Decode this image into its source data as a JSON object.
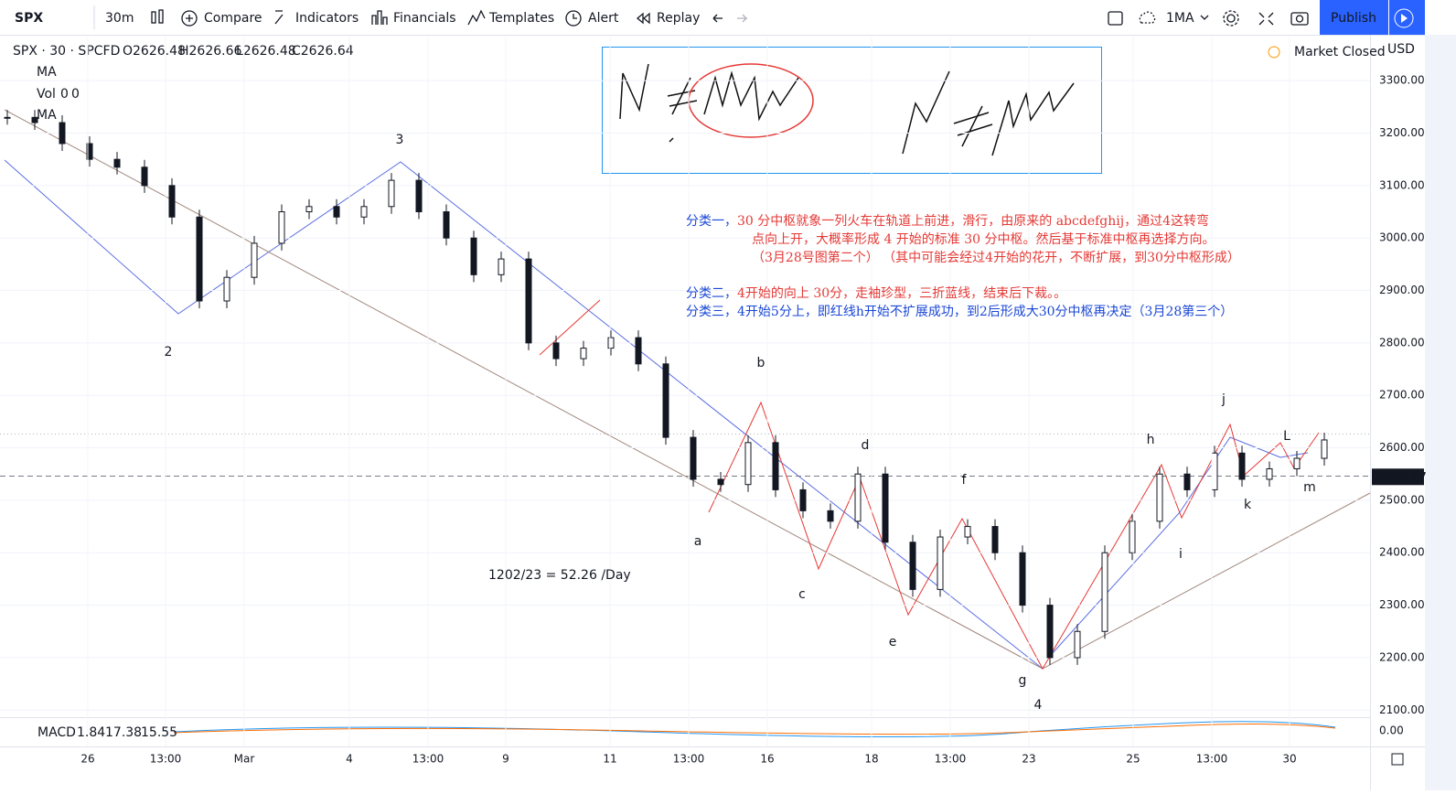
{
  "toolbar": {
    "symbol": "SPX",
    "interval": "30m",
    "buttons": [
      "Compare",
      "Indicators",
      "Financials",
      "Templates",
      "Alert",
      "Replay"
    ],
    "template": "1MA",
    "publish": "Publish"
  },
  "legend": {
    "title": "SPX · 30 · SPCFD",
    "ohlc": [
      "O2626.48",
      "H2626.66",
      "L2626.48",
      "C2626.64"
    ],
    "ma": "MA",
    "vol": "Vol",
    "vol_values": [
      "0",
      "0"
    ],
    "ma2": "MA"
  },
  "status": "Market Closed",
  "currency": "USD",
  "price_axis": {
    "ylim": [
      2090,
      3384
    ],
    "ticks": [
      {
        "value": 3300,
        "label": "3300.00"
      },
      {
        "value": 3200,
        "label": "3200.00"
      },
      {
        "value": 3100,
        "label": "3100.00"
      },
      {
        "value": 3000,
        "label": "3000.00"
      },
      {
        "value": 2900,
        "label": "2900.00"
      },
      {
        "value": 2800,
        "label": "2800.00"
      },
      {
        "value": 2700,
        "label": "2700.00"
      },
      {
        "value": 2600,
        "label": "2600.00"
      },
      {
        "value": 2500,
        "label": "2500.00"
      },
      {
        "value": 2400,
        "label": "2400.00"
      },
      {
        "value": 2300,
        "label": "2300.00"
      },
      {
        "value": 2200,
        "label": "2200.00"
      },
      {
        "value": 2100,
        "label": "2100.00"
      }
    ],
    "last_price": {
      "value": 2544.67,
      "label": "2544.67"
    }
  },
  "time_axis": [
    "26",
    "13:00",
    "Mar",
    "4",
    "13:00",
    "9",
    "11",
    "13:00",
    "16",
    "18",
    "13:00",
    "23",
    "25",
    "13:00",
    "30"
  ],
  "price_series": [
    3230,
    3220,
    3180,
    3150,
    3135,
    3100,
    3040,
    2880,
    2925,
    2990,
    3050,
    3060,
    3040,
    3060,
    3110,
    3050,
    3000,
    2930,
    2960,
    2800,
    2770,
    2790,
    2810,
    2760,
    2620,
    2540,
    2530,
    2610,
    2520,
    2480,
    2460,
    2550,
    2420,
    2330,
    2430,
    2450,
    2400,
    2300,
    2200,
    2250,
    2400,
    2460,
    2550,
    2520,
    2590,
    2540,
    2560,
    2580,
    2615
  ],
  "waves": [
    "2",
    "3",
    "4",
    "a",
    "b",
    "c",
    "d",
    "e",
    "f",
    "g",
    "h",
    "i",
    "j",
    "k",
    "L",
    "m"
  ],
  "annotations": [
    {
      "prefix": "分类一，",
      "text": "30 分中枢就象一列火车在轨道上前进，滑行，由原来的 abcdefghij，通过4这转弯"
    },
    {
      "prefix": "",
      "text": "点向上开，大概率形成 4 开始的标准 30 分中枢。然后基于标准中枢再选择方向。"
    },
    {
      "prefix": "",
      "text": "（3月28号图第二个）  （其中可能会经过4开始的花开，不断扩展，到30分中枢形成）"
    },
    {
      "prefix": "分类二，",
      "text": "4开始的向上 30分，走袖珍型，三折蓝线，结束后下裁。。"
    },
    {
      "prefix": "分类三，",
      "text": "4开始5分上，即红线h开始不扩展成功，到2后形成大30分中枢再决定（3月28第三个）"
    }
  ],
  "formula": "1202/23 = 52.26 /Day",
  "macd": {
    "name": "MACD",
    "values": [
      "1.84",
      "17.38",
      "15.55"
    ],
    "zero": "0.00"
  }
}
